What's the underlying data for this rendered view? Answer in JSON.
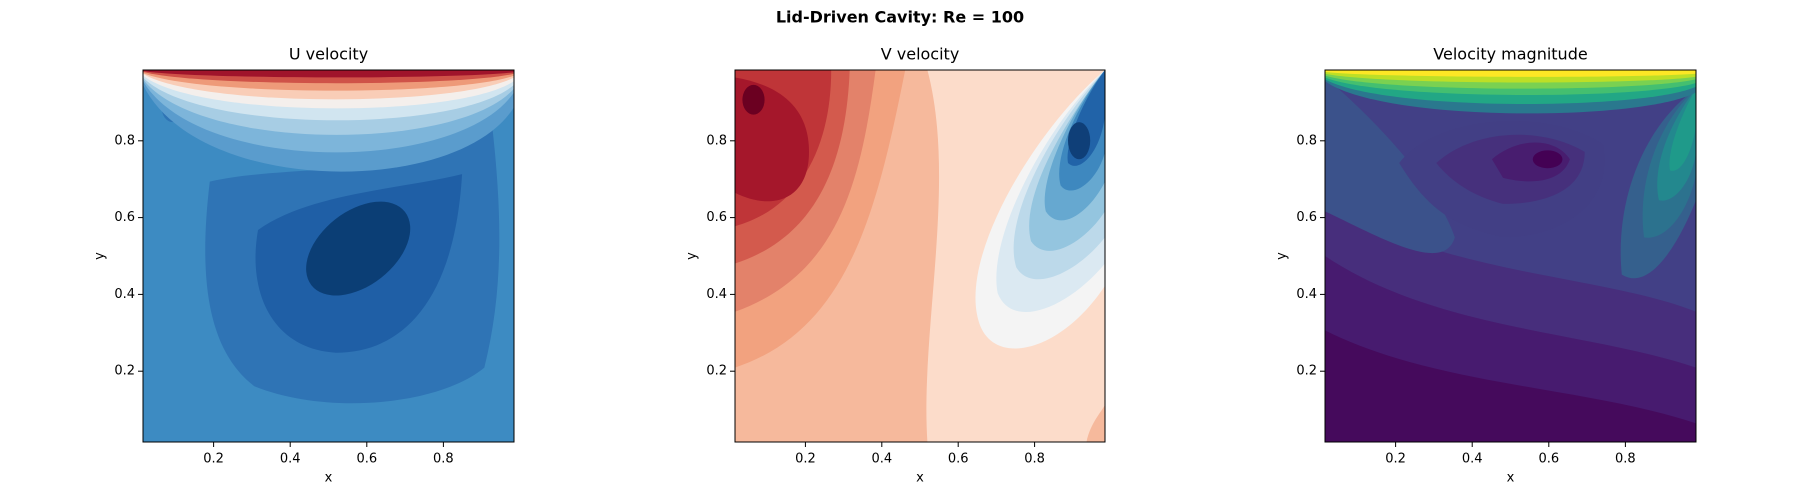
{
  "title": "Lid-Driven Cavity: Re = 100",
  "chart_data": [
    {
      "type": "contour",
      "title": "U velocity",
      "xlabel": "x",
      "ylabel": "y",
      "xlim": [
        0.015625,
        0.984375
      ],
      "ylim": [
        0.015625,
        0.984375
      ],
      "xticks": [
        0.2,
        0.4,
        0.6,
        0.8
      ],
      "yticks": [
        0.2,
        0.4,
        0.6,
        0.8
      ]
    },
    {
      "type": "contour",
      "title": "V velocity",
      "xlabel": "x",
      "ylabel": "y",
      "xlim": [
        0.015625,
        0.984375
      ],
      "ylim": [
        0.015625,
        0.984375
      ],
      "xticks": [
        0.2,
        0.4,
        0.6,
        0.8
      ],
      "yticks": [
        0.2,
        0.4,
        0.6,
        0.8
      ]
    },
    {
      "type": "contour",
      "title": "Velocity magnitude",
      "xlabel": "x",
      "ylabel": "y",
      "xlim": [
        0.015625,
        0.984375
      ],
      "ylim": [
        0.015625,
        0.984375
      ],
      "xticks": [
        0.2,
        0.4,
        0.6,
        0.8
      ],
      "yticks": [
        0.2,
        0.4,
        0.6,
        0.8
      ]
    }
  ]
}
